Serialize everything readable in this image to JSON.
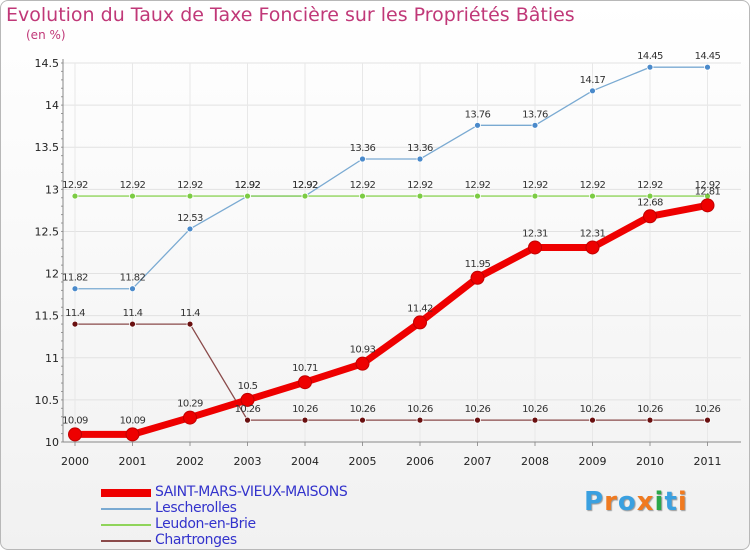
{
  "chart_data": {
    "type": "line",
    "title": "Evolution du Taux de Taxe Foncière sur les Propriétés Bâties",
    "ylabel": "(en %)",
    "xlabel": "",
    "ylim": [
      10,
      14.5
    ],
    "yticks": [
      "10",
      "10.5",
      "11",
      "11.5",
      "12",
      "12.5",
      "13",
      "13.5",
      "14",
      "14.5"
    ],
    "x": [
      "2000",
      "2001",
      "2002",
      "2003",
      "2004",
      "2005",
      "2006",
      "2007",
      "2008",
      "2009",
      "2010",
      "2011"
    ],
    "series": [
      {
        "name": "Lescherolles",
        "color": "#7aaad2",
        "marker": "#4a8acb",
        "values": [
          11.82,
          11.82,
          12.53,
          12.92,
          12.92,
          13.36,
          13.36,
          13.76,
          13.76,
          14.17,
          14.45,
          14.45
        ],
        "labels": [
          "11.82",
          "11.82",
          "12.53",
          "12.92",
          "12.92",
          "13.36",
          "13.36",
          "13.76",
          "13.76",
          "14.17",
          "14.45",
          "14.45"
        ]
      },
      {
        "name": "Leudon-en-Brie",
        "color": "#8fd45a",
        "marker": "#7ccc44",
        "values": [
          12.92,
          12.92,
          12.92,
          12.92,
          12.92,
          12.92,
          12.92,
          12.92,
          12.92,
          12.92,
          12.92,
          12.92
        ],
        "labels": [
          "12.92",
          "12.92",
          "12.92",
          "12.92",
          "12.92",
          "12.92",
          "12.92",
          "12.92",
          "12.92",
          "12.92",
          "12.92",
          "12.92"
        ]
      },
      {
        "name": "Chartronges",
        "color": "#8a4a4a",
        "marker": "#6a1010",
        "values": [
          11.4,
          11.4,
          11.4,
          10.26,
          10.26,
          10.26,
          10.26,
          10.26,
          10.26,
          10.26,
          10.26,
          10.26
        ],
        "labels": [
          "11.4",
          "11.4",
          "11.4",
          "10.26",
          "10.26",
          "10.26",
          "10.26",
          "10.26",
          "10.26",
          "10.26",
          "10.26",
          "10.26"
        ]
      },
      {
        "name": "SAINT-MARS-VIEUX-MAISONS",
        "color": "#ee0000",
        "marker": "#ee0000",
        "values": [
          10.09,
          10.09,
          10.29,
          10.5,
          10.71,
          10.93,
          11.42,
          11.95,
          12.31,
          12.31,
          12.68,
          12.81
        ],
        "labels": [
          "10.09",
          "10.09",
          "10.29",
          "10.5",
          "10.71",
          "10.93",
          "11.42",
          "11.95",
          "12.31",
          "12.31",
          "12.68",
          "12.81"
        ]
      }
    ],
    "legend": [
      "SAINT-MARS-VIEUX-MAISONS",
      "Lescherolles",
      "Leudon-en-Brie",
      "Chartronges"
    ],
    "legend_placement": "bottom-left"
  },
  "logo": {
    "text": "Proxiti",
    "letters": [
      "P",
      "r",
      "o",
      "x",
      "i",
      "t",
      "i"
    ],
    "colors": [
      "#3aa0e0",
      "#f07a20",
      "#3aa0e0",
      "#f07a20",
      "#2aa84a",
      "#3aa0e0",
      "#f07a20"
    ]
  }
}
